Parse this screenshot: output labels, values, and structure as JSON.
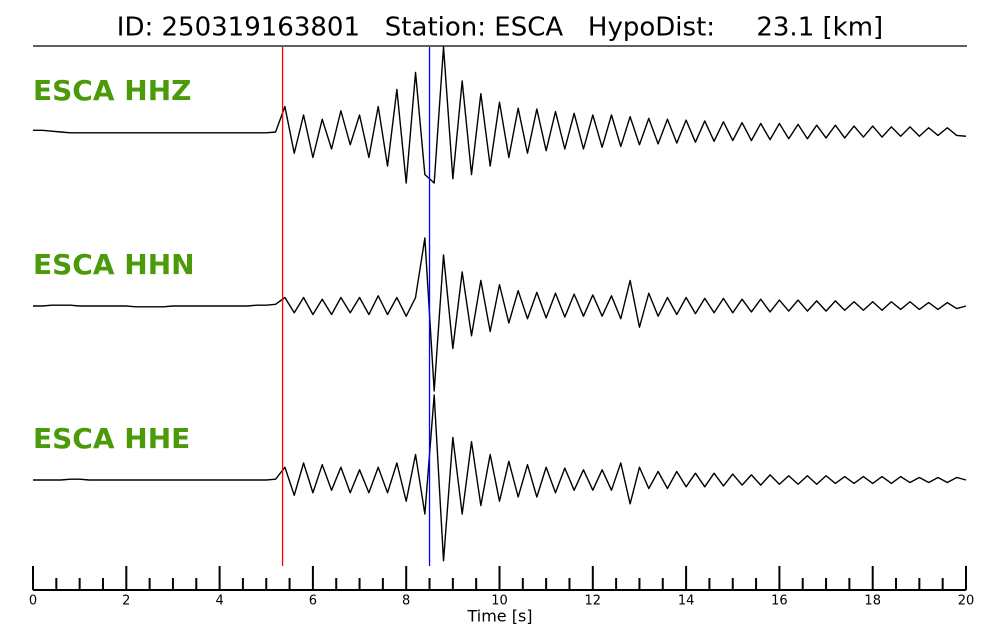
{
  "chart_data": {
    "type": "seismogram",
    "title": "ID: 250319163801   Station: ESCA   HypoDist:     23.1 [km]",
    "xlabel": "Time [s]",
    "xlim": [
      0,
      20
    ],
    "xticks": [
      0,
      2,
      4,
      6,
      8,
      10,
      12,
      14,
      16,
      18,
      20
    ],
    "xminorticks": [
      0.5,
      1,
      1.5,
      2.5,
      3,
      3.5,
      4.5,
      5,
      5.5,
      6.5,
      7,
      7.5,
      8.5,
      9,
      9.5,
      10.5,
      11,
      11.5,
      12.5,
      13,
      13.5,
      14.5,
      15,
      15.5,
      16.5,
      17,
      17.5,
      18.5,
      19,
      19.5
    ],
    "label_color": "#4a9a0a",
    "line_color": "#000000",
    "picks": [
      {
        "x": 5.35,
        "color": "#ff0000"
      },
      {
        "x": 8.5,
        "color": "#0000ff"
      }
    ],
    "x": [
      0,
      0.2,
      0.4,
      0.6,
      0.8,
      1,
      1.2,
      1.4,
      1.6,
      1.8,
      2,
      2.2,
      2.4,
      2.6,
      2.8,
      3,
      3.2,
      3.4,
      3.6,
      3.8,
      4,
      4.2,
      4.4,
      4.6,
      4.8,
      5,
      5.2,
      5.4,
      5.6,
      5.8,
      6,
      6.2,
      6.4,
      6.6,
      6.8,
      7,
      7.2,
      7.4,
      7.6,
      7.8,
      8,
      8.2,
      8.4,
      8.6,
      8.8,
      9,
      9.2,
      9.4,
      9.6,
      9.8,
      10,
      10.2,
      10.4,
      10.6,
      10.8,
      11,
      11.2,
      11.4,
      11.6,
      11.8,
      12,
      12.2,
      12.4,
      12.6,
      12.8,
      13,
      13.2,
      13.4,
      13.6,
      13.8,
      14,
      14.2,
      14.4,
      14.6,
      14.8,
      15,
      15.2,
      15.4,
      15.6,
      15.8,
      16,
      16.2,
      16.4,
      16.6,
      16.8,
      17,
      17.2,
      17.4,
      17.6,
      17.8,
      18,
      18.2,
      18.4,
      18.6,
      18.8,
      19,
      19.2,
      19.4,
      19.6,
      19.8,
      20
    ],
    "series": [
      {
        "name": "ESCA HHZ",
        "ylim": [
          -1.2,
          1.2
        ],
        "values": [
          0.02,
          0.02,
          0.01,
          0,
          -0.01,
          -0.01,
          -0.01,
          -0.01,
          -0.01,
          -0.01,
          -0.01,
          -0.01,
          -0.01,
          -0.01,
          -0.01,
          -0.01,
          -0.01,
          -0.01,
          -0.01,
          -0.01,
          -0.01,
          -0.01,
          -0.01,
          -0.01,
          -0.01,
          -0.01,
          0,
          0.3,
          -0.25,
          0.2,
          -0.3,
          0.15,
          -0.2,
          0.25,
          -0.15,
          0.2,
          -0.3,
          0.3,
          -0.4,
          0.5,
          -0.6,
          0.7,
          -0.5,
          -0.6,
          1.0,
          -0.55,
          0.6,
          -0.5,
          0.45,
          -0.4,
          0.35,
          -0.3,
          0.28,
          -0.25,
          0.27,
          -0.22,
          0.24,
          -0.2,
          0.22,
          -0.2,
          0.2,
          -0.18,
          0.2,
          -0.17,
          0.18,
          -0.15,
          0.16,
          -0.14,
          0.15,
          -0.13,
          0.14,
          -0.12,
          0.13,
          -0.11,
          0.12,
          -0.1,
          0.11,
          -0.1,
          0.1,
          -0.09,
          0.1,
          -0.08,
          0.09,
          -0.08,
          0.08,
          -0.07,
          0.08,
          -0.07,
          0.07,
          -0.06,
          0.07,
          -0.06,
          0.06,
          -0.05,
          0.06,
          -0.05,
          0.05,
          -0.04,
          0.05,
          -0.04,
          -0.05
        ]
      },
      {
        "name": "ESCA HHN",
        "ylim": [
          -1.2,
          1.2
        ],
        "values": [
          0,
          0,
          0.01,
          0.01,
          0.01,
          0,
          0,
          0,
          0,
          0,
          0,
          -0.01,
          -0.01,
          -0.01,
          -0.01,
          0,
          0,
          0,
          0,
          0,
          0,
          0,
          0,
          0,
          0.01,
          0.01,
          0.02,
          0.1,
          -0.08,
          0.1,
          -0.1,
          0.08,
          -0.1,
          0.1,
          -0.08,
          0.1,
          -0.1,
          0.12,
          -0.1,
          0.1,
          -0.12,
          0.1,
          0.8,
          -1.0,
          0.6,
          -0.5,
          0.4,
          -0.35,
          0.3,
          -0.3,
          0.25,
          -0.2,
          0.18,
          -0.15,
          0.16,
          -0.14,
          0.15,
          -0.13,
          0.14,
          -0.12,
          0.13,
          -0.12,
          0.12,
          -0.15,
          0.3,
          -0.25,
          0.15,
          -0.12,
          0.1,
          -0.1,
          0.1,
          -0.09,
          0.09,
          -0.08,
          0.09,
          -0.08,
          0.08,
          -0.07,
          0.08,
          -0.07,
          0.07,
          -0.06,
          0.07,
          -0.06,
          0.06,
          -0.06,
          0.06,
          -0.05,
          0.05,
          -0.05,
          0.05,
          -0.05,
          0.05,
          -0.04,
          0.05,
          -0.04,
          0.04,
          -0.04,
          0.04,
          -0.03,
          0
        ]
      },
      {
        "name": "ESCA HHE",
        "ylim": [
          -1.2,
          1.2
        ],
        "values": [
          0,
          0,
          0,
          0,
          0.01,
          0.01,
          0,
          0,
          0,
          0,
          0,
          0,
          0,
          0,
          0,
          0,
          0,
          0,
          0,
          0,
          0,
          0,
          0,
          0,
          0,
          0,
          0.01,
          0.15,
          -0.18,
          0.2,
          -0.15,
          0.18,
          -0.12,
          0.15,
          -0.15,
          0.12,
          -0.15,
          0.15,
          -0.15,
          0.2,
          -0.25,
          0.3,
          -0.4,
          1.0,
          -0.95,
          0.5,
          -0.4,
          0.45,
          -0.3,
          0.3,
          -0.25,
          0.22,
          -0.2,
          0.18,
          -0.2,
          0.15,
          -0.15,
          0.14,
          -0.12,
          0.12,
          -0.12,
          0.12,
          -0.12,
          0.2,
          -0.28,
          0.15,
          -0.1,
          0.1,
          -0.1,
          0.1,
          -0.08,
          0.08,
          -0.08,
          0.08,
          -0.07,
          0.07,
          -0.06,
          0.06,
          -0.06,
          0.06,
          -0.05,
          0.05,
          -0.05,
          0.05,
          -0.05,
          0.05,
          -0.04,
          0.04,
          -0.04,
          0.04,
          -0.04,
          0.04,
          -0.04,
          0.04,
          -0.03,
          0.03,
          -0.03,
          0.03,
          -0.03,
          0.03,
          0
        ]
      }
    ]
  }
}
